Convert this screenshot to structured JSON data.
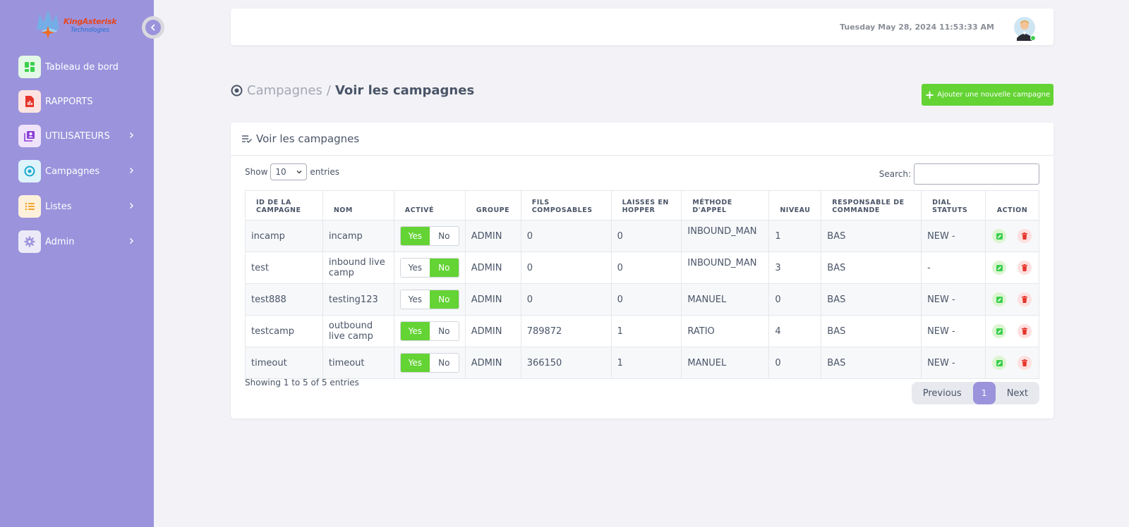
{
  "brand": {
    "name": "KingAsterisk",
    "sub": "Technologies"
  },
  "sidebar": {
    "items": [
      {
        "label": "Tableau de bord",
        "icon": "dashboard-icon",
        "color": "#3ccf4e",
        "bg": "#e3f8e6"
      },
      {
        "label": "RAPPORTS",
        "icon": "report-icon",
        "color": "#e5352b",
        "bg": "#fde4e2"
      },
      {
        "label": "UTILISATEURS",
        "icon": "users-icon",
        "color": "#8b3fd8",
        "bg": "#efe3fb"
      },
      {
        "label": "Campagnes",
        "icon": "target-icon",
        "color": "#17a8cf",
        "bg": "#dff4fa"
      },
      {
        "label": "Listes",
        "icon": "list-icon",
        "color": "#f2a22b",
        "bg": "#fdf1dc"
      },
      {
        "label": "Admin",
        "icon": "gear-icon",
        "color": "#9b93dc",
        "bg": "#eceaf8"
      }
    ]
  },
  "topbar": {
    "datetime": "Tuesday May 28, 2024 11:53:33 AM"
  },
  "breadcrumb": {
    "parent": "Campagnes",
    "separator": "/",
    "current": "Voir les campagnes"
  },
  "add_button": {
    "label": "Ajouter une nouvelle campagne"
  },
  "card": {
    "title": "Voir les campagnes"
  },
  "controls": {
    "show_label": "Show",
    "length_value": "10",
    "entries_label": "entries",
    "search_label": "Search:"
  },
  "table": {
    "headers": [
      "ID DE LA CAMPAGNE",
      "NOM",
      "ACTIVÉ",
      "GROUPE",
      "FILS COMPOSABLES",
      "LAISSES EN HOPPER",
      "MÉTHODE D'APPEL",
      "NIVEAU",
      "RESPONSABLE DE COMMANDE",
      "DIAL STATUTS",
      "ACTION"
    ],
    "toggle_labels": {
      "yes": "Yes",
      "no": "No"
    },
    "rows": [
      {
        "id": "incamp",
        "nom": "incamp",
        "active": true,
        "groupe": "ADMIN",
        "fils": "0",
        "hopper": "0",
        "methode": "INBOUND_MAN",
        "niveau": "1",
        "responsable": "BAS",
        "statuts": "NEW -"
      },
      {
        "id": "test",
        "nom": "inbound live camp",
        "active": false,
        "groupe": "ADMIN",
        "fils": "0",
        "hopper": "0",
        "methode": "INBOUND_MAN",
        "niveau": "3",
        "responsable": "BAS",
        "statuts": "-"
      },
      {
        "id": "test888",
        "nom": "testing123",
        "active": false,
        "groupe": "ADMIN",
        "fils": "0",
        "hopper": "0",
        "methode": "MANUEL",
        "niveau": "0",
        "responsable": "BAS",
        "statuts": "NEW -"
      },
      {
        "id": "testcamp",
        "nom": "outbound live camp",
        "active": true,
        "groupe": "ADMIN",
        "fils": "789872",
        "hopper": "1",
        "methode": "RATIO",
        "niveau": "4",
        "responsable": "BAS",
        "statuts": "NEW -"
      },
      {
        "id": "timeout",
        "nom": "timeout",
        "active": true,
        "groupe": "ADMIN",
        "fils": "366150",
        "hopper": "1",
        "methode": "MANUEL",
        "niveau": "0",
        "responsable": "BAS",
        "statuts": "NEW -"
      }
    ]
  },
  "footer": {
    "info": "Showing 1 to 5 of 5 entries",
    "previous": "Previous",
    "page": "1",
    "next": "Next"
  }
}
